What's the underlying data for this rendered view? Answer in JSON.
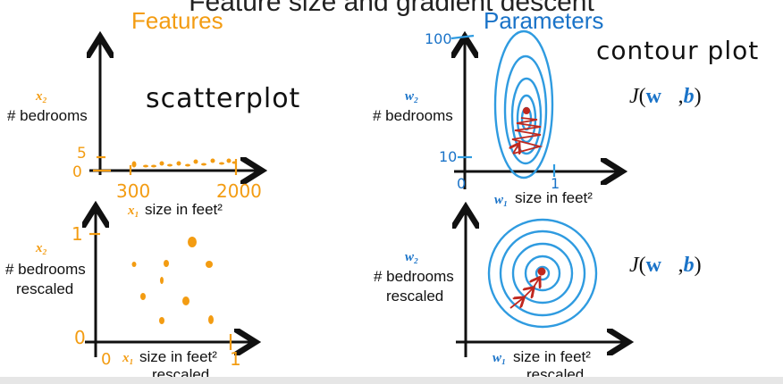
{
  "slide_title": "Feature size and gradient descent",
  "headers": {
    "features": "Features",
    "parameters": "Parameters"
  },
  "annotations": {
    "scatterplot": "scatterplot",
    "contour_plot": "contour plot"
  },
  "panels": {
    "top_left": {
      "y_var": "x₂",
      "y_label": "# bedrooms",
      "x_var": "x₁",
      "x_label": "size in feet²",
      "y_ticks": [
        "5",
        "0"
      ],
      "x_ticks": [
        "300",
        "2000"
      ]
    },
    "bottom_left": {
      "y_var": "x₂",
      "y_label_1": "# bedrooms",
      "y_label_2": "rescaled",
      "x_var": "x₁",
      "x_label_1": "size in feet²",
      "x_label_2": "rescaled",
      "y_ticks": [
        "1",
        "0"
      ],
      "x_ticks": [
        "0",
        "1"
      ]
    },
    "top_right": {
      "y_var": "w₂",
      "y_label": "# bedrooms",
      "x_var": "w₁",
      "x_label": "size in feet²",
      "y_ticks": [
        "100",
        "10"
      ],
      "x_ticks": [
        "0",
        "1"
      ],
      "cost_fn": {
        "J": "J",
        "open": "(",
        "w": "w⃗",
        "comma": ",",
        "b": "b",
        "close": ")"
      }
    },
    "bottom_right": {
      "y_var": "w₂",
      "y_label_1": "# bedrooms",
      "y_label_2": "rescaled",
      "x_var": "w₁",
      "x_label_1": "size in feet²",
      "x_label_2": "rescaled",
      "cost_fn": {
        "J": "J",
        "open": "(",
        "w": "w⃗",
        "comma": ",",
        "b": "b",
        "close": ")"
      }
    }
  },
  "colors": {
    "orange": "#f39c12",
    "blue": "#1a73c8",
    "contour": "#2f9be0",
    "red": "#c0281e",
    "axis": "#111111"
  }
}
